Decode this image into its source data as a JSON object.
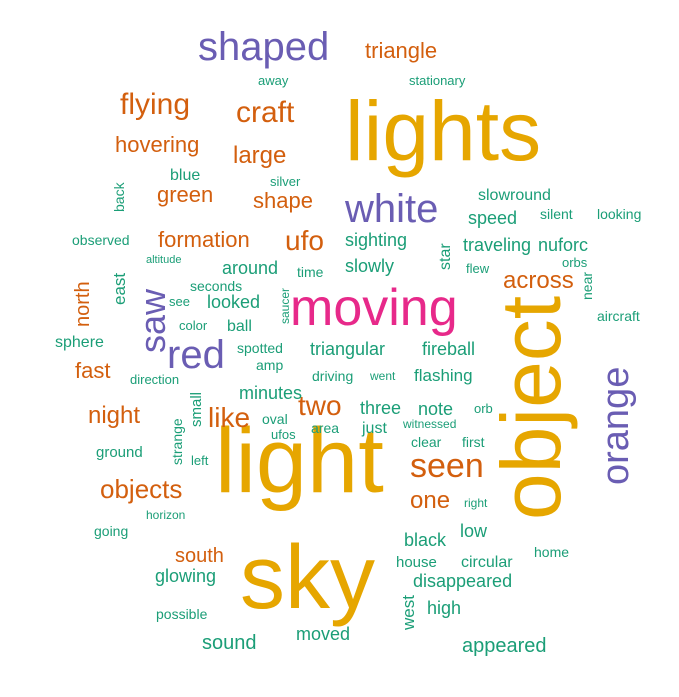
{
  "colors": {
    "gold": "#E6A600",
    "purple": "#6A5DB3",
    "orange": "#D35F0E",
    "green": "#1B9E77",
    "magenta": "#E7298A"
  },
  "words": [
    {
      "text": "lights",
      "color": "gold"
    },
    {
      "text": "light",
      "color": "gold"
    },
    {
      "text": "object",
      "color": "gold"
    },
    {
      "text": "sky",
      "color": "gold"
    },
    {
      "text": "moving",
      "color": "magenta"
    },
    {
      "text": "shaped",
      "color": "purple"
    },
    {
      "text": "white",
      "color": "purple"
    },
    {
      "text": "orange",
      "color": "purple"
    },
    {
      "text": "red",
      "color": "purple"
    },
    {
      "text": "saw",
      "color": "purple"
    },
    {
      "text": "triangle",
      "color": "orange"
    },
    {
      "text": "flying",
      "color": "orange"
    },
    {
      "text": "craft",
      "color": "orange"
    },
    {
      "text": "hovering",
      "color": "orange"
    },
    {
      "text": "large",
      "color": "orange"
    },
    {
      "text": "green",
      "color": "orange"
    },
    {
      "text": "shape",
      "color": "orange"
    },
    {
      "text": "formation",
      "color": "orange"
    },
    {
      "text": "ufo",
      "color": "orange"
    },
    {
      "text": "across",
      "color": "orange"
    },
    {
      "text": "north",
      "color": "orange"
    },
    {
      "text": "fast",
      "color": "orange"
    },
    {
      "text": "night",
      "color": "orange"
    },
    {
      "text": "like",
      "color": "orange"
    },
    {
      "text": "two",
      "color": "orange"
    },
    {
      "text": "seen",
      "color": "orange"
    },
    {
      "text": "objects",
      "color": "orange"
    },
    {
      "text": "one",
      "color": "orange"
    },
    {
      "text": "south",
      "color": "orange"
    },
    {
      "text": "away",
      "color": "green"
    },
    {
      "text": "stationary",
      "color": "green"
    },
    {
      "text": "blue",
      "color": "green"
    },
    {
      "text": "silver",
      "color": "green"
    },
    {
      "text": "back",
      "color": "green"
    },
    {
      "text": "slowround",
      "color": "green"
    },
    {
      "text": "speed",
      "color": "green"
    },
    {
      "text": "silent",
      "color": "green"
    },
    {
      "text": "looking",
      "color": "green"
    },
    {
      "text": "observed",
      "color": "green"
    },
    {
      "text": "sighting",
      "color": "green"
    },
    {
      "text": "star",
      "color": "green"
    },
    {
      "text": "traveling",
      "color": "green"
    },
    {
      "text": "nuforc",
      "color": "green"
    },
    {
      "text": "altitude",
      "color": "green"
    },
    {
      "text": "around",
      "color": "green"
    },
    {
      "text": "time",
      "color": "green"
    },
    {
      "text": "slowly",
      "color": "green"
    },
    {
      "text": "flew",
      "color": "green"
    },
    {
      "text": "orbs",
      "color": "green"
    },
    {
      "text": "east",
      "color": "green"
    },
    {
      "text": "seconds",
      "color": "green"
    },
    {
      "text": "see",
      "color": "green"
    },
    {
      "text": "looked",
      "color": "green"
    },
    {
      "text": "saucer",
      "color": "green"
    },
    {
      "text": "near",
      "color": "green"
    },
    {
      "text": "color",
      "color": "green"
    },
    {
      "text": "ball",
      "color": "green"
    },
    {
      "text": "aircraft",
      "color": "green"
    },
    {
      "text": "sphere",
      "color": "green"
    },
    {
      "text": "spotted",
      "color": "green"
    },
    {
      "text": "triangular",
      "color": "green"
    },
    {
      "text": "fireball",
      "color": "green"
    },
    {
      "text": "amp",
      "color": "green"
    },
    {
      "text": "direction",
      "color": "green"
    },
    {
      "text": "driving",
      "color": "green"
    },
    {
      "text": "went",
      "color": "green"
    },
    {
      "text": "flashing",
      "color": "green"
    },
    {
      "text": "minutes",
      "color": "green"
    },
    {
      "text": "small",
      "color": "green"
    },
    {
      "text": "three",
      "color": "green"
    },
    {
      "text": "note",
      "color": "green"
    },
    {
      "text": "orb",
      "color": "green"
    },
    {
      "text": "oval",
      "color": "green"
    },
    {
      "text": "area",
      "color": "green"
    },
    {
      "text": "just",
      "color": "green"
    },
    {
      "text": "witnessed",
      "color": "green"
    },
    {
      "text": "ufos",
      "color": "green"
    },
    {
      "text": "strange",
      "color": "green"
    },
    {
      "text": "clear",
      "color": "green"
    },
    {
      "text": "first",
      "color": "green"
    },
    {
      "text": "ground",
      "color": "green"
    },
    {
      "text": "left",
      "color": "green"
    },
    {
      "text": "right",
      "color": "green"
    },
    {
      "text": "horizon",
      "color": "green"
    },
    {
      "text": "black",
      "color": "green"
    },
    {
      "text": "low",
      "color": "green"
    },
    {
      "text": "going",
      "color": "green"
    },
    {
      "text": "house",
      "color": "green"
    },
    {
      "text": "circular",
      "color": "green"
    },
    {
      "text": "home",
      "color": "green"
    },
    {
      "text": "glowing",
      "color": "green"
    },
    {
      "text": "disappeared",
      "color": "green"
    },
    {
      "text": "west",
      "color": "green"
    },
    {
      "text": "possible",
      "color": "green"
    },
    {
      "text": "high",
      "color": "green"
    },
    {
      "text": "sound",
      "color": "green"
    },
    {
      "text": "moved",
      "color": "green"
    },
    {
      "text": "appeared",
      "color": "green"
    }
  ]
}
